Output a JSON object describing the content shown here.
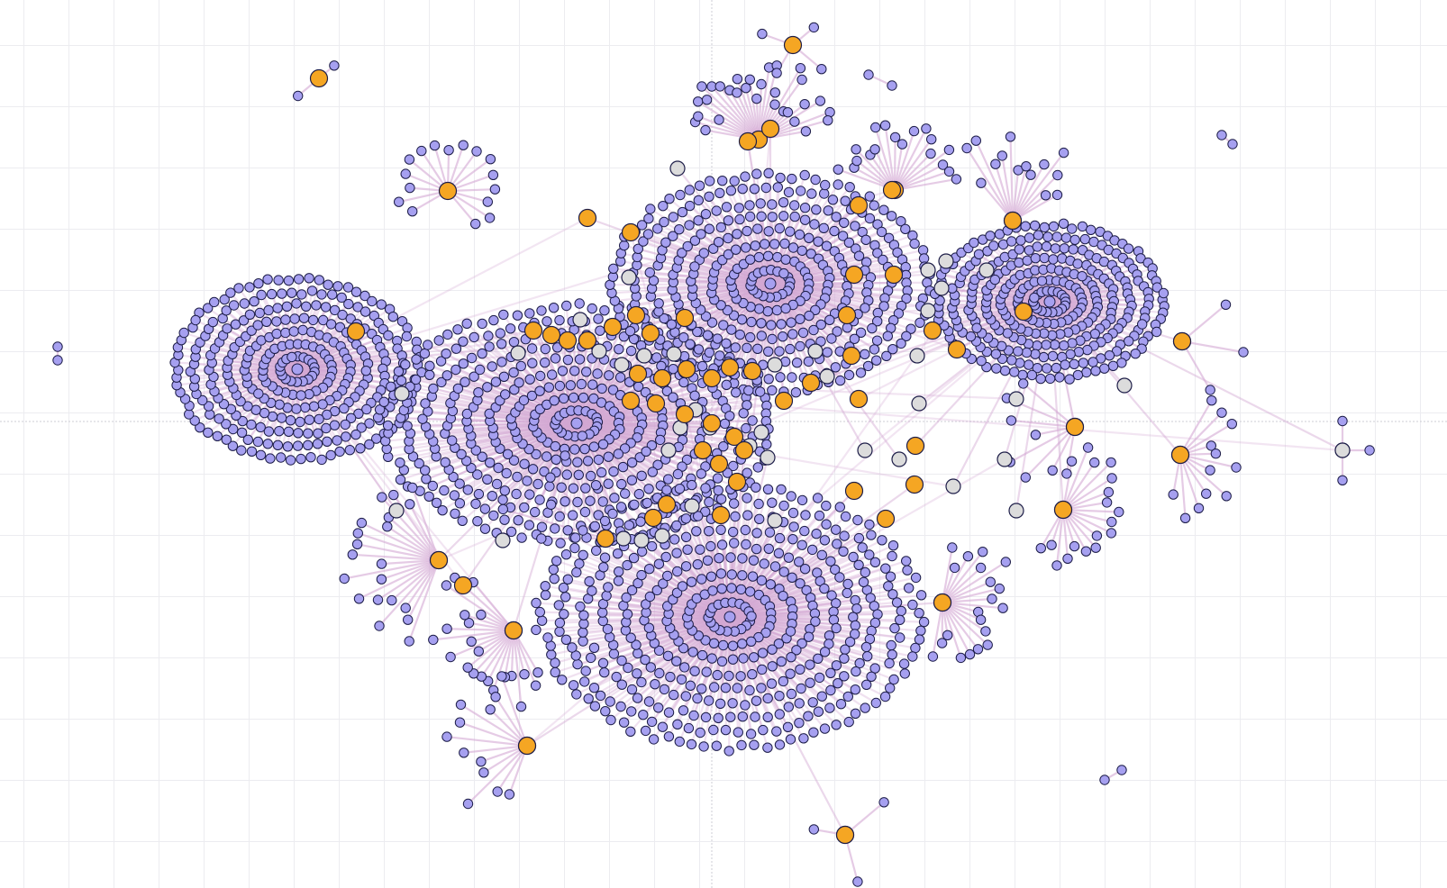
{
  "view": {
    "type": "network-graph",
    "grid": true,
    "center_axes": true
  },
  "colors": {
    "background": "#ffffff",
    "grid": "#ececf0",
    "axis": "#c8c8d0",
    "edge": "#d3a9d3",
    "leaf_node": "#a6a0f0",
    "hub_node": "#f5a623",
    "mid_node": "#dcdcdc",
    "node_stroke": "#1d1d48"
  },
  "legend": [],
  "graph_summary": {
    "clusters": [
      {
        "id": "left-cluster",
        "size": 260,
        "color": "leaf_node"
      },
      {
        "id": "center-cluster",
        "size": 620,
        "color": "leaf_node"
      },
      {
        "id": "upper-center-cluster",
        "size": 460,
        "color": "leaf_node"
      },
      {
        "id": "right-cluster",
        "size": 230,
        "color": "leaf_node"
      },
      {
        "id": "bottom-cluster",
        "size": 520,
        "color": "leaf_node"
      },
      {
        "id": "bridge-nodes",
        "size": 110,
        "color": "hub_node"
      }
    ]
  }
}
